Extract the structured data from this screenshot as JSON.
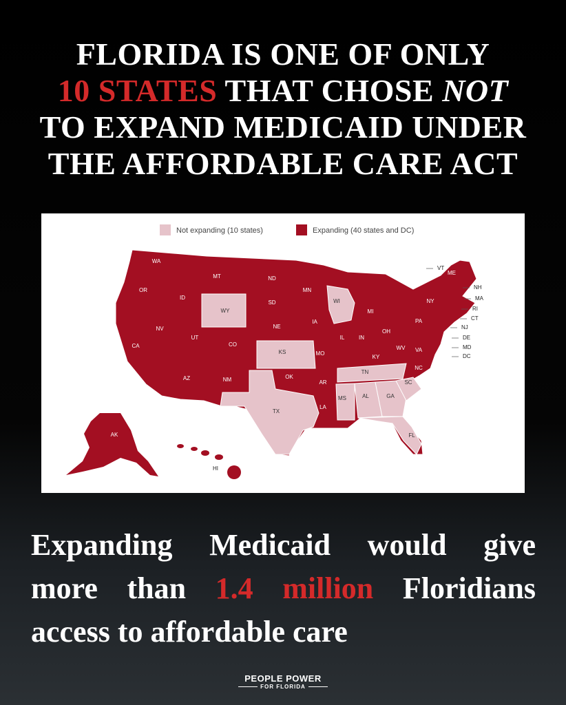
{
  "headline": {
    "line1": "FLORIDA IS ONE OF ONLY",
    "highlight": "10 STATES",
    "line2": "THAT CHOSE",
    "emphasis": "NOT",
    "line3": "TO EXPAND MEDICAID UNDER",
    "line4": "THE AFFORDABLE CARE ACT"
  },
  "map": {
    "legend": [
      {
        "label": "Not expanding (10 states)",
        "color": "#e6c3ca"
      },
      {
        "label": "Expanding (40 states and DC)",
        "color": "#a30f22"
      }
    ],
    "states": [
      {
        "label": "WA",
        "status": 1
      },
      {
        "label": "OR",
        "status": 1
      },
      {
        "label": "CA",
        "status": 1
      },
      {
        "label": "NV",
        "status": 1
      },
      {
        "label": "ID",
        "status": 1
      },
      {
        "label": "MT",
        "status": 1
      },
      {
        "label": "WY",
        "status": 0
      },
      {
        "label": "UT",
        "status": 1
      },
      {
        "label": "AZ",
        "status": 1
      },
      {
        "label": "CO",
        "status": 1
      },
      {
        "label": "NM",
        "status": 1
      },
      {
        "label": "ND",
        "status": 1
      },
      {
        "label": "SD",
        "status": 1
      },
      {
        "label": "NE",
        "status": 1
      },
      {
        "label": "KS",
        "status": 0
      },
      {
        "label": "OK",
        "status": 1
      },
      {
        "label": "TX",
        "status": 0
      },
      {
        "label": "MN",
        "status": 1
      },
      {
        "label": "IA",
        "status": 1
      },
      {
        "label": "MO",
        "status": 1
      },
      {
        "label": "AR",
        "status": 1
      },
      {
        "label": "LA",
        "status": 1
      },
      {
        "label": "WI",
        "status": 0
      },
      {
        "label": "IL",
        "status": 1
      },
      {
        "label": "MI",
        "status": 1
      },
      {
        "label": "IN",
        "status": 1
      },
      {
        "label": "OH",
        "status": 1
      },
      {
        "label": "KY",
        "status": 1
      },
      {
        "label": "TN",
        "status": 0
      },
      {
        "label": "MS",
        "status": 0
      },
      {
        "label": "AL",
        "status": 0
      },
      {
        "label": "GA",
        "status": 0
      },
      {
        "label": "FL",
        "status": 0
      },
      {
        "label": "SC",
        "status": 0
      },
      {
        "label": "NC",
        "status": 1
      },
      {
        "label": "VA",
        "status": 1
      },
      {
        "label": "WV",
        "status": 1
      },
      {
        "label": "PA",
        "status": 1
      },
      {
        "label": "NY",
        "status": 1
      },
      {
        "label": "VT",
        "status": 1
      },
      {
        "label": "ME",
        "status": 1
      },
      {
        "label": "NH",
        "status": 1
      },
      {
        "label": "MA",
        "status": 1
      },
      {
        "label": "RI",
        "status": 1
      },
      {
        "label": "CT",
        "status": 1
      },
      {
        "label": "NJ",
        "status": 1
      },
      {
        "label": "DE",
        "status": 1
      },
      {
        "label": "MD",
        "status": 1
      },
      {
        "label": "DC",
        "status": 1
      },
      {
        "label": "AK",
        "status": 1
      },
      {
        "label": "HI",
        "status": 1
      }
    ]
  },
  "body": {
    "line1": "Expanding Medicaid would give",
    "line2": "more than",
    "highlight": "1.4 million",
    "line2_end": "Floridians",
    "line3": "access to affordable care"
  },
  "footer": {
    "brand": "PEOPLE POWER",
    "sub": "FOR FLORIDA"
  }
}
